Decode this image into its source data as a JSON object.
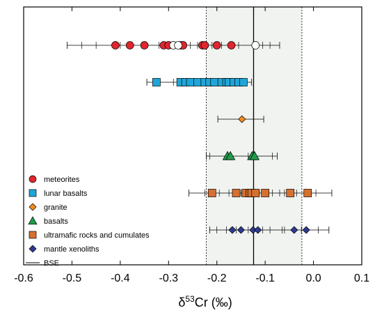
{
  "chart_data": {
    "type": "scatter",
    "title": "",
    "xlabel_prefix": "δ",
    "xlabel_sup": "53",
    "xlabel_suffix": "Cr (‰)",
    "ylabel": "",
    "xlim": [
      -0.6,
      0.1
    ],
    "xticks": [
      -0.6,
      -0.5,
      -0.4,
      -0.3,
      -0.2,
      -0.1,
      0.0,
      0.1
    ],
    "xtick_labels": [
      "-0.6",
      "-0.5",
      "-0.4",
      "-0.3",
      "-0.2",
      "-0.1",
      "0.0",
      "0.1"
    ],
    "grid": false,
    "legend_position": "bottom-left",
    "bse": {
      "label": "BSE",
      "value": -0.124,
      "band": [
        -0.222,
        -0.024
      ],
      "band_color": "#f0f3ef"
    },
    "series": [
      {
        "name": "meteorites",
        "marker": "circle",
        "color": "#e0262f",
        "points": [
          {
            "x": -0.41,
            "err": 0.0
          },
          {
            "x": -0.38,
            "err": 0.0
          },
          {
            "x": -0.35,
            "err": 0.0
          },
          {
            "x": -0.31,
            "err": 0.0
          },
          {
            "x": -0.3,
            "err": 0.0
          },
          {
            "x": -0.275,
            "err": 0.0
          },
          {
            "x": -0.27,
            "err": 0.0
          },
          {
            "x": -0.23,
            "err": 0.0
          },
          {
            "x": -0.225,
            "err": 0.0
          },
          {
            "x": -0.2,
            "err": 0.0
          },
          {
            "x": -0.17,
            "err": 0.0
          }
        ],
        "open_points": [
          -0.29,
          -0.28,
          -0.12
        ],
        "whisker_range": [
          -0.51,
          -0.07
        ],
        "whisker_ticks": [
          -0.48,
          -0.45,
          -0.4,
          -0.355,
          -0.32,
          -0.295,
          -0.285,
          -0.265,
          -0.255,
          -0.24,
          -0.21,
          -0.19,
          -0.155,
          -0.105,
          -0.09
        ]
      },
      {
        "name": "lunar basalts",
        "marker": "square",
        "color": "#1ea6d9",
        "points": [
          {
            "x": -0.325
          },
          {
            "x": -0.275
          },
          {
            "x": -0.265
          },
          {
            "x": -0.255
          },
          {
            "x": -0.24
          },
          {
            "x": -0.225
          },
          {
            "x": -0.215
          },
          {
            "x": -0.205
          },
          {
            "x": -0.19
          },
          {
            "x": -0.18
          },
          {
            "x": -0.175
          },
          {
            "x": -0.165
          },
          {
            "x": -0.155
          },
          {
            "x": -0.145
          }
        ],
        "open_points": [],
        "whisker_range": [
          -0.345,
          -0.128
        ],
        "whisker_ticks": [
          -0.29,
          -0.262,
          -0.232,
          -0.198,
          -0.16,
          -0.138
        ]
      },
      {
        "name": "granite",
        "marker": "diamond",
        "color": "#f08c1e",
        "points": [
          {
            "x": -0.148
          }
        ],
        "open_points": [],
        "whisker_range": [
          -0.198,
          -0.103
        ],
        "whisker_ticks": []
      },
      {
        "name": "basalts",
        "marker": "triangle",
        "color": "#1f9b4a",
        "points": [
          {
            "x": -0.178
          },
          {
            "x": -0.172
          },
          {
            "x": -0.127
          },
          {
            "x": -0.122
          }
        ],
        "open_points": [],
        "whisker_range": [
          -0.222,
          -0.075
        ],
        "whisker_ticks": [
          -0.215,
          -0.135,
          -0.085
        ]
      },
      {
        "name": "ultramafic rocks and cumulates",
        "marker": "square",
        "color": "#d6702f",
        "points": [
          {
            "x": -0.21
          },
          {
            "x": -0.16
          },
          {
            "x": -0.14
          },
          {
            "x": -0.132
          },
          {
            "x": -0.128
          },
          {
            "x": -0.12
          },
          {
            "x": -0.1
          },
          {
            "x": -0.048
          },
          {
            "x": -0.012
          }
        ],
        "open_points": [],
        "whisker_range": [
          -0.258,
          0.038
        ],
        "whisker_ticks": [
          -0.225,
          -0.195,
          -0.175,
          -0.15,
          -0.112,
          -0.085,
          -0.07,
          -0.06,
          -0.035,
          0.005
        ]
      },
      {
        "name": "mantle xenoliths",
        "marker": "diamond",
        "color": "#2e3a8f",
        "points": [
          {
            "x": -0.168
          },
          {
            "x": -0.15
          },
          {
            "x": -0.125
          },
          {
            "x": -0.115
          },
          {
            "x": -0.04
          },
          {
            "x": -0.015
          }
        ],
        "open_points": [],
        "whisker_range": [
          -0.215,
          0.032
        ],
        "whisker_ticks": [
          -0.2,
          -0.18,
          -0.16,
          -0.135,
          -0.105,
          -0.09,
          -0.065,
          -0.06,
          -0.025,
          0.01
        ]
      }
    ]
  }
}
